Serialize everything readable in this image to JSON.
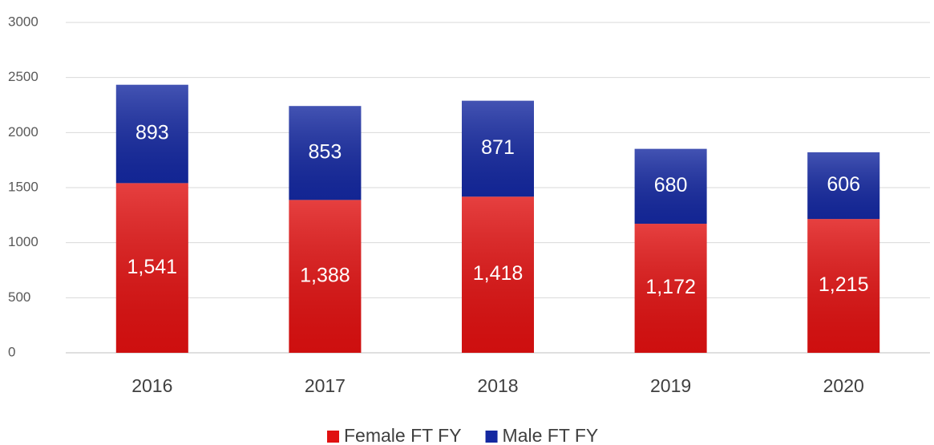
{
  "chart_data": {
    "type": "bar",
    "stacked": true,
    "categories": [
      "2016",
      "2017",
      "2018",
      "2019",
      "2020"
    ],
    "series": [
      {
        "name": "Female FT FY",
        "color": "#e01010",
        "values": [
          1541,
          1388,
          1418,
          1172,
          1215
        ],
        "value_labels": [
          "1,541",
          "1,388",
          "1,418",
          "1,172",
          "1,215"
        ]
      },
      {
        "name": "Male FT FY",
        "color": "#1428a0",
        "values": [
          893,
          853,
          871,
          680,
          606
        ]
      }
    ],
    "ylim": [
      0,
      3000
    ],
    "yticks": [
      0,
      500,
      1000,
      1500,
      2000,
      2500,
      3000
    ],
    "grid": true,
    "legend": "bottom"
  }
}
